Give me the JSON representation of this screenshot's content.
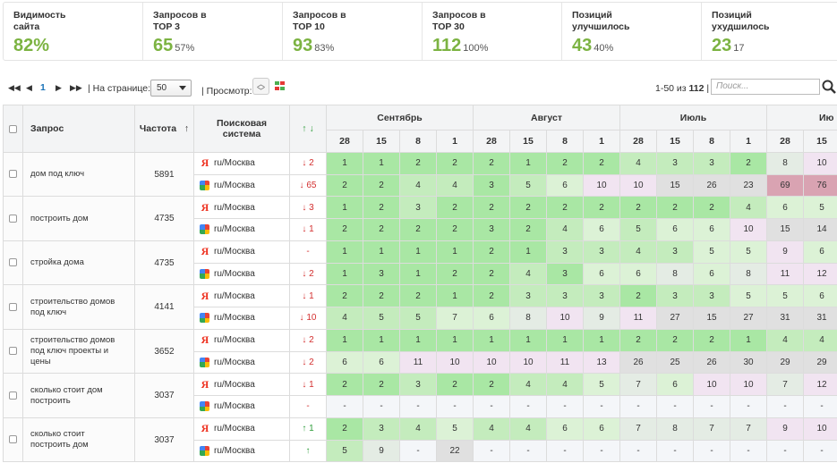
{
  "stats": [
    {
      "line1": "Видимость",
      "line2": "сайта",
      "big": "82%",
      "small": ""
    },
    {
      "line1": "Запросов в",
      "line2": "TOP 3",
      "big": "65",
      "small": "57%"
    },
    {
      "line1": "Запросов в",
      "line2": "TOP 10",
      "big": "93",
      "small": "83%"
    },
    {
      "line1": "Запросов в",
      "line2": "TOP 30",
      "big": "112",
      "small": "100%"
    },
    {
      "line1": "Позиций",
      "line2": "улучшилось",
      "big": "43",
      "small": "40%"
    },
    {
      "line1": "Позиций",
      "line2": "ухудшилось",
      "big": "23",
      "small": "17"
    }
  ],
  "toolbar": {
    "page": "1",
    "per_page_label": "| На странице:",
    "per_page_value": "50",
    "view_label": "| Просмотр:",
    "range_prefix": "1-50 из ",
    "range_total": "112",
    "range_suffix": " |",
    "search_placeholder": "Поиск..."
  },
  "header": {
    "query": "Запрос",
    "freq": "Частота",
    "freq_sort": "↑",
    "engine": "Поисковая система",
    "delta": "↑ ↓",
    "months": [
      "Сентябрь",
      "Август",
      "Июль",
      "Ию"
    ],
    "days": [
      "28",
      "15",
      "8",
      "1",
      "28",
      "15",
      "8",
      "1",
      "28",
      "15",
      "8",
      "1",
      "28",
      "15"
    ]
  },
  "colors": {
    "green_strong": "#a9e7a4",
    "green": "#c4ecbd",
    "green_light": "#dcf2d6",
    "neutral": "#e4ece4",
    "grey": "#e0e0e0",
    "pink_light": "#f1e4f1",
    "pink": "#ecccde",
    "pink_strong": "#e4b7c9",
    "red": "#d9a3b2",
    "empty": "#f4f6f9",
    "accent_green": "#7cb342",
    "link": "#1a73b8"
  },
  "rows": [
    {
      "query": "дом под ключ",
      "freq": "5891",
      "engines": [
        {
          "icon": "yandex",
          "region": "ru/Москва",
          "delta": "↓ 2",
          "dir": "dn",
          "cells": [
            "1",
            "1",
            "2",
            "2",
            "2",
            "1",
            "2",
            "2",
            "4",
            "3",
            "3",
            "2",
            "8",
            "10"
          ]
        },
        {
          "icon": "google",
          "region": "ru/Москва",
          "delta": "↓ 65",
          "dir": "dn",
          "cells": [
            "2",
            "2",
            "4",
            "4",
            "3",
            "5",
            "6",
            "10",
            "10",
            "15",
            "26",
            "23",
            "69",
            "76"
          ]
        }
      ]
    },
    {
      "query": "построить дом",
      "freq": "4735",
      "engines": [
        {
          "icon": "yandex",
          "region": "ru/Москва",
          "delta": "↓ 3",
          "dir": "dn",
          "cells": [
            "1",
            "2",
            "3",
            "2",
            "2",
            "2",
            "2",
            "2",
            "2",
            "2",
            "2",
            "4",
            "6",
            "5"
          ]
        },
        {
          "icon": "google",
          "region": "ru/Москва",
          "delta": "↓ 1",
          "dir": "dn",
          "cells": [
            "2",
            "2",
            "2",
            "2",
            "3",
            "2",
            "4",
            "6",
            "5",
            "6",
            "6",
            "10",
            "15",
            "14"
          ]
        }
      ]
    },
    {
      "query": "стройка дома",
      "freq": "4735",
      "engines": [
        {
          "icon": "yandex",
          "region": "ru/Москва",
          "delta": "-",
          "dir": "nc",
          "cells": [
            "1",
            "1",
            "1",
            "1",
            "2",
            "1",
            "3",
            "3",
            "4",
            "3",
            "5",
            "5",
            "9",
            "6"
          ]
        },
        {
          "icon": "google",
          "region": "ru/Москва",
          "delta": "↓ 2",
          "dir": "dn",
          "cells": [
            "1",
            "3",
            "1",
            "2",
            "2",
            "4",
            "3",
            "6",
            "6",
            "8",
            "6",
            "8",
            "11",
            "12"
          ]
        }
      ]
    },
    {
      "query": "строительство домов под ключ",
      "freq": "4141",
      "engines": [
        {
          "icon": "yandex",
          "region": "ru/Москва",
          "delta": "↓ 1",
          "dir": "dn",
          "cells": [
            "2",
            "2",
            "2",
            "1",
            "2",
            "3",
            "3",
            "3",
            "2",
            "3",
            "3",
            "5",
            "5",
            "6"
          ]
        },
        {
          "icon": "google",
          "region": "ru/Москва",
          "delta": "↓ 10",
          "dir": "dn",
          "cells": [
            "4",
            "5",
            "5",
            "7",
            "6",
            "8",
            "10",
            "9",
            "11",
            "27",
            "15",
            "27",
            "31",
            "31"
          ]
        }
      ]
    },
    {
      "query": "строительство домов под ключ проекты и цены",
      "freq": "3652",
      "engines": [
        {
          "icon": "yandex",
          "region": "ru/Москва",
          "delta": "↓ 2",
          "dir": "dn",
          "cells": [
            "1",
            "1",
            "1",
            "1",
            "1",
            "1",
            "1",
            "1",
            "2",
            "2",
            "2",
            "1",
            "4",
            "4"
          ]
        },
        {
          "icon": "google",
          "region": "ru/Москва",
          "delta": "↓ 2",
          "dir": "dn",
          "cells": [
            "6",
            "6",
            "11",
            "10",
            "10",
            "10",
            "11",
            "13",
            "26",
            "25",
            "26",
            "30",
            "29",
            "29"
          ]
        }
      ]
    },
    {
      "query": "сколько стоит дом построить",
      "freq": "3037",
      "engines": [
        {
          "icon": "yandex",
          "region": "ru/Москва",
          "delta": "↓ 1",
          "dir": "dn",
          "cells": [
            "2",
            "2",
            "3",
            "2",
            "2",
            "4",
            "4",
            "5",
            "7",
            "6",
            "10",
            "10",
            "7",
            "12"
          ]
        },
        {
          "icon": "google",
          "region": "ru/Москва",
          "delta": "-",
          "dir": "nc",
          "cells": [
            "-",
            "-",
            "-",
            "-",
            "-",
            "-",
            "-",
            "-",
            "-",
            "-",
            "-",
            "-",
            "-",
            "-"
          ]
        }
      ]
    },
    {
      "query": "сколько стоит построить дом",
      "freq": "3037",
      "engines": [
        {
          "icon": "yandex",
          "region": "ru/Москва",
          "delta": "↑ 1",
          "dir": "up",
          "cells": [
            "2",
            "3",
            "4",
            "5",
            "4",
            "4",
            "6",
            "6",
            "7",
            "8",
            "7",
            "7",
            "9",
            "10"
          ]
        },
        {
          "icon": "google",
          "region": "ru/Москва",
          "delta": "↑",
          "dir": "up",
          "cells": [
            "5",
            "9",
            "-",
            "22",
            "-",
            "-",
            "-",
            "-",
            "-",
            "-",
            "-",
            "-",
            "-",
            "-"
          ]
        }
      ]
    }
  ]
}
